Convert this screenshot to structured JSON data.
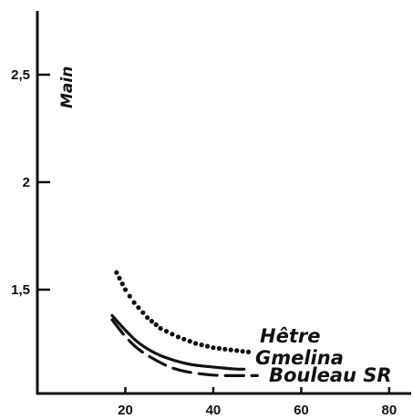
{
  "chart_data": {
    "type": "line",
    "title": "",
    "xlabel": "",
    "ylabel": "Main",
    "xlim": [
      0,
      85
    ],
    "ylim": [
      1.0,
      2.85
    ],
    "x_ticks": [
      20,
      40,
      60,
      80
    ],
    "x_tick_labels": [
      "20",
      "40",
      "60",
      "80"
    ],
    "y_ticks": [
      1.5,
      2,
      2.5
    ],
    "y_tick_labels": [
      "1,5",
      "2",
      "2,5"
    ],
    "grid": false,
    "legend": "none",
    "series": [
      {
        "name": "Hêtre",
        "style": "dotted",
        "color": "#111111",
        "x": [
          18,
          20,
          22,
          25,
          28,
          32,
          36,
          40,
          44,
          48
        ],
        "y": [
          1.58,
          1.5,
          1.44,
          1.37,
          1.32,
          1.28,
          1.25,
          1.23,
          1.22,
          1.21
        ]
      },
      {
        "name": "Gmelina",
        "style": "solid",
        "color": "#111111",
        "x": [
          17,
          20,
          23,
          27,
          31,
          35,
          40,
          45,
          47
        ],
        "y": [
          1.38,
          1.31,
          1.25,
          1.2,
          1.17,
          1.15,
          1.14,
          1.13,
          1.13
        ]
      },
      {
        "name": "Bouleau SR",
        "style": "dashed",
        "color": "#111111",
        "x": [
          17,
          20,
          23,
          27,
          31,
          36,
          41,
          46,
          50
        ],
        "y": [
          1.36,
          1.28,
          1.22,
          1.17,
          1.13,
          1.11,
          1.1,
          1.1,
          1.1
        ]
      }
    ]
  }
}
